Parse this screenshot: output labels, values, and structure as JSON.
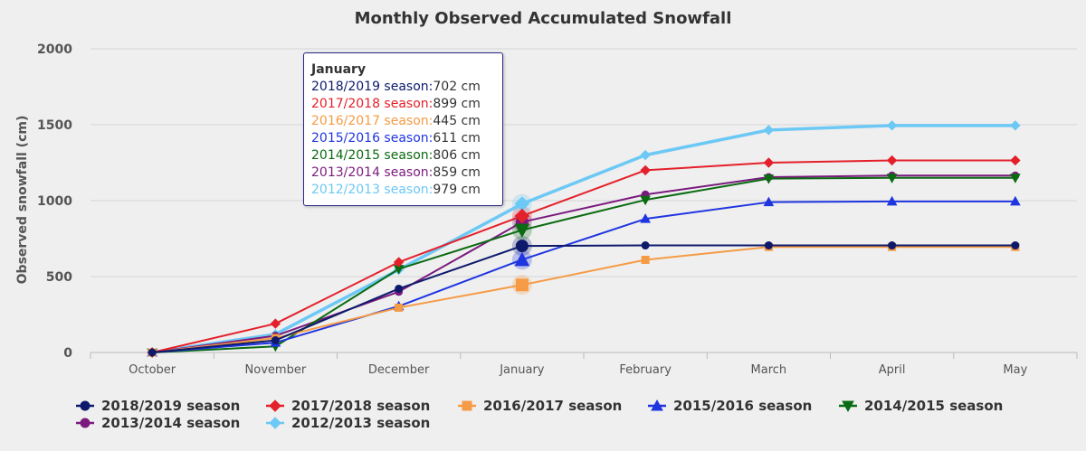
{
  "chart_data": {
    "type": "line",
    "title": "Monthly Observed Accumulated Snowfall",
    "xlabel": "",
    "ylabel": "Observed snowfall (cm)",
    "ylim": [
      0,
      2000
    ],
    "yticks": [
      "0",
      "500",
      "1000",
      "1500",
      "2000"
    ],
    "categories": [
      "October",
      "November",
      "December",
      "January",
      "February",
      "March",
      "April",
      "May"
    ],
    "grid": "horizontal",
    "legend_position": "bottom",
    "series": [
      {
        "name": "2018/2019 season",
        "color": "#0d1a6b",
        "marker": "circle",
        "values": [
          0,
          80,
          420,
          702,
          705,
          705,
          705,
          705
        ]
      },
      {
        "name": "2017/2018 season",
        "color": "#e4202a",
        "marker": "diamond",
        "values": [
          0,
          190,
          595,
          899,
          1200,
          1250,
          1265,
          1265
        ]
      },
      {
        "name": "2016/2017 season",
        "color": "#f59b45",
        "marker": "square",
        "values": [
          0,
          95,
          295,
          445,
          610,
          695,
          695,
          695
        ]
      },
      {
        "name": "2015/2016 season",
        "color": "#1f35e0",
        "marker": "triangle",
        "values": [
          0,
          65,
          305,
          611,
          880,
          990,
          995,
          995
        ]
      },
      {
        "name": "2014/2015 season",
        "color": "#0b6b12",
        "marker": "triangle-down",
        "values": [
          0,
          40,
          550,
          806,
          1005,
          1145,
          1150,
          1150
        ]
      },
      {
        "name": "2013/2014 season",
        "color": "#7b1a7e",
        "marker": "circle",
        "values": [
          0,
          110,
          400,
          859,
          1040,
          1155,
          1165,
          1165
        ]
      },
      {
        "name": "2012/2013 season",
        "color": "#6cc8f5",
        "marker": "diamond",
        "values": [
          0,
          120,
          545,
          979,
          1300,
          1465,
          1495,
          1495
        ]
      }
    ],
    "tooltip": {
      "title": "January",
      "rows": [
        {
          "label": "2018/2019 season:",
          "value": "702 cm"
        },
        {
          "label": "2017/2018 season:",
          "value": "899 cm"
        },
        {
          "label": "2016/2017 season:",
          "value": "445 cm"
        },
        {
          "label": "2015/2016 season:",
          "value": "611 cm"
        },
        {
          "label": "2014/2015 season:",
          "value": "806 cm"
        },
        {
          "label": "2013/2014 season:",
          "value": "859 cm"
        },
        {
          "label": "2012/2013 season:",
          "value": "979 cm"
        }
      ]
    },
    "highlight_category": "January"
  }
}
